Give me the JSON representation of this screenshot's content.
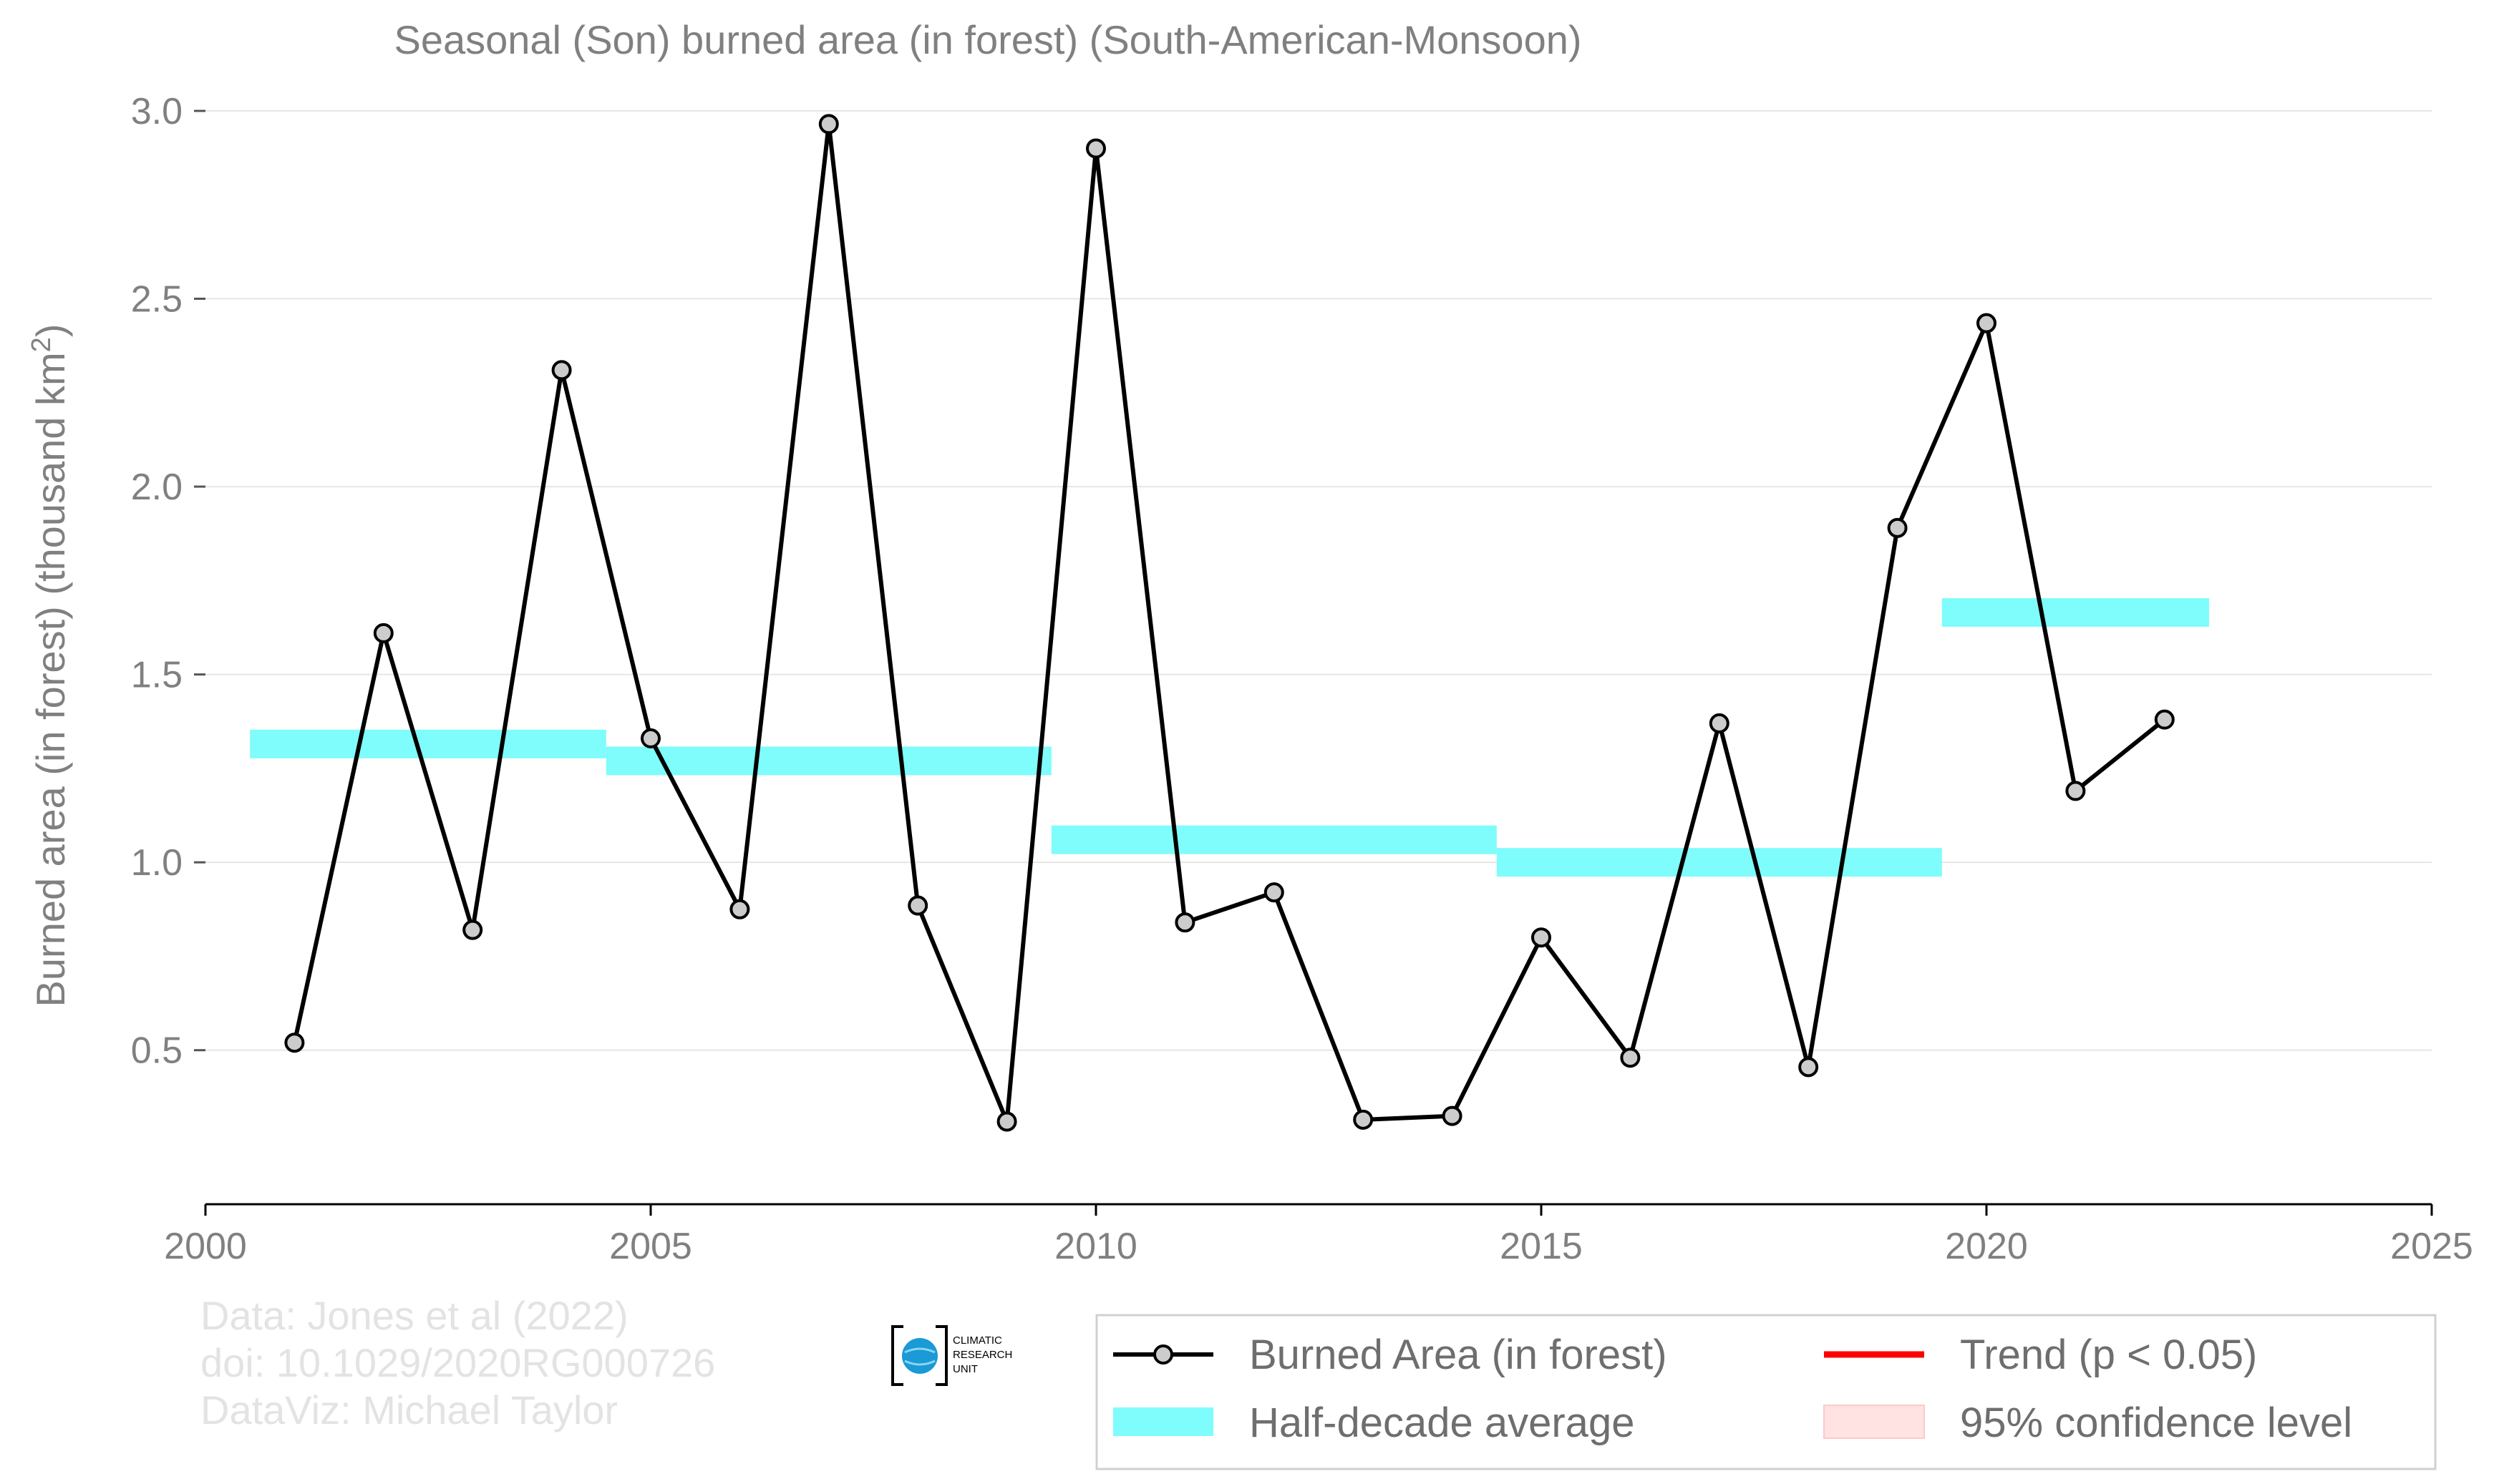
{
  "chart_data": {
    "type": "line",
    "title": "Seasonal (Son) burned area (in forest) (South-American-Monsoon)",
    "ylabel_main": "Burned area (in forest) (thousand km",
    "ylabel_sup": "2",
    "ylabel_close": ")",
    "xlim": [
      2000,
      2025
    ],
    "ylim": [
      0.09,
      3.0
    ],
    "xticks": [
      2000,
      2005,
      2010,
      2015,
      2020,
      2025
    ],
    "yticks": [
      0.5,
      1.0,
      1.5,
      2.0,
      2.5,
      3.0
    ],
    "xtick_labels": [
      "2000",
      "2005",
      "2010",
      "2015",
      "2020",
      "2025"
    ],
    "ytick_labels": [
      "0.5",
      "1.0",
      "1.5",
      "2.0",
      "2.5",
      "3.0"
    ],
    "grid": "horizontal",
    "series": [
      {
        "name": "Burned Area (in forest)",
        "color": "#000000",
        "marker_fill": "#cccccc",
        "x": [
          2001,
          2002,
          2003,
          2004,
          2005,
          2006,
          2007,
          2008,
          2009,
          2010,
          2011,
          2012,
          2013,
          2014,
          2015,
          2016,
          2017,
          2018,
          2019,
          2020,
          2021,
          2022
        ],
        "y": [
          0.52,
          1.61,
          0.82,
          2.31,
          1.33,
          0.875,
          2.965,
          0.885,
          0.31,
          2.9,
          0.84,
          0.92,
          0.315,
          0.325,
          0.8,
          0.48,
          1.37,
          0.455,
          1.89,
          2.435,
          1.19,
          1.38
        ]
      }
    ],
    "half_decade_average": {
      "name": "Half-decade average",
      "color": "#7ffcfc",
      "segments": [
        {
          "x_start": 2000.5,
          "x_end": 2004.5,
          "y": 1.315
        },
        {
          "x_start": 2004.5,
          "x_end": 2009.5,
          "y": 1.27
        },
        {
          "x_start": 2009.5,
          "x_end": 2014.5,
          "y": 1.06
        },
        {
          "x_start": 2014.5,
          "x_end": 2019.5,
          "y": 1.0
        },
        {
          "x_start": 2019.5,
          "x_end": 2022.5,
          "y": 1.665
        }
      ]
    },
    "legend": {
      "placement": "bottom-right",
      "entries": [
        {
          "label": "Burned Area (in forest)",
          "kind": "line-marker",
          "color": "#000000"
        },
        {
          "label": "Half-decade average",
          "kind": "band",
          "color": "#7ffcfc"
        },
        {
          "label": "Trend (p < 0.05)",
          "kind": "line",
          "color": "#ff0000"
        },
        {
          "label": "95% confidence level",
          "kind": "patch",
          "color": "#ffe3e3"
        }
      ]
    },
    "credits": [
      "Data: Jones et al (2022)",
      "doi: 10.1029/2020RG000726",
      "DataViz: Michael Taylor"
    ],
    "logo_text": [
      "CLIMATIC",
      "RESEARCH",
      "UNIT"
    ]
  }
}
